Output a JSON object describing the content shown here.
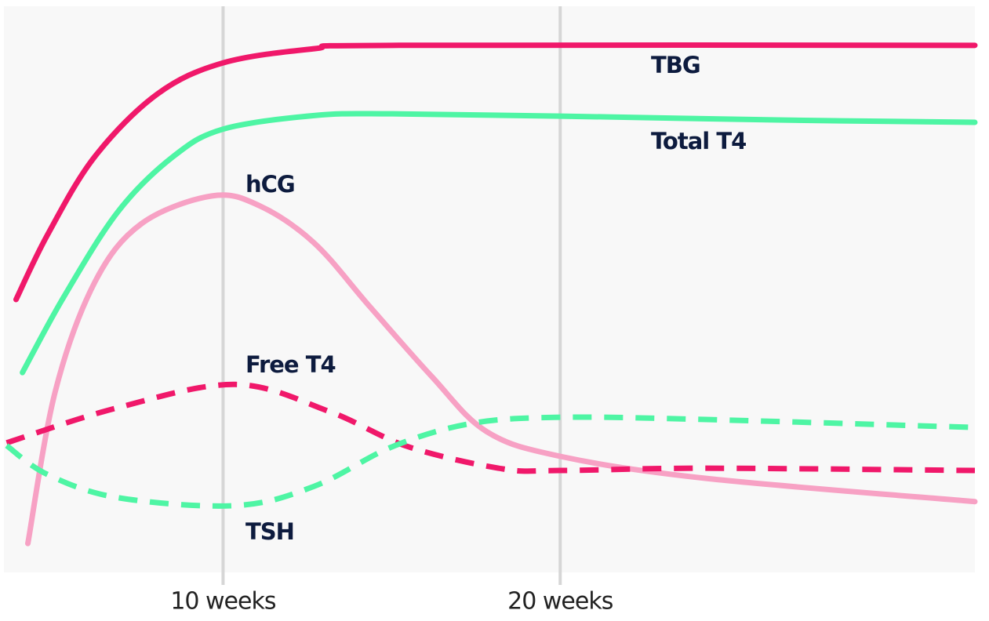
{
  "chart_data": {
    "type": "line",
    "xlim": [
      3.5,
      32.3
    ],
    "ylim": [
      0,
      100
    ],
    "xticks": [
      {
        "value": 10,
        "label": "10 weeks"
      },
      {
        "value": 20,
        "label": "20 weeks"
      }
    ],
    "grid": true,
    "series": [
      {
        "name": "TBG",
        "color": "#f0186a",
        "dashed": false,
        "x": [
          3.86,
          4.79,
          6.19,
          8.05,
          10,
          12.7,
          15.0,
          32.3
        ],
        "values": [
          48.2,
          59.6,
          73.4,
          84.5,
          90.0,
          92.5,
          93.1,
          93.1
        ]
      },
      {
        "name": "Total T4",
        "color": "#4ef5a4",
        "dashed": false,
        "x": [
          4.05,
          5.26,
          6.88,
          8.51,
          10,
          12.7,
          15.02,
          20,
          26.65,
          32.3
        ],
        "values": [
          35.3,
          48.5,
          63.7,
          73.4,
          78.3,
          80.7,
          81.0,
          80.6,
          79.9,
          79.5
        ]
      },
      {
        "name": "hCG",
        "color": "#f7a1c4",
        "dashed": false,
        "x": [
          4.21,
          5.02,
          6.19,
          7.58,
          9.67,
          11.07,
          12.7,
          14.33,
          16.19,
          17.81,
          20,
          24.33,
          32.3
        ],
        "values": [
          5.1,
          31.9,
          51.2,
          61.6,
          66.5,
          64.8,
          58.2,
          47.1,
          34.6,
          24.9,
          20.5,
          16.6,
          12.5
        ]
      },
      {
        "name": "Free T4",
        "color": "#f0186a",
        "dashed": true,
        "x": [
          3.58,
          6.88,
          10.37,
          13.16,
          15.49,
          18.28,
          20,
          24.33,
          32.3
        ],
        "values": [
          22.9,
          29.1,
          33.2,
          28.4,
          22.2,
          18.3,
          18.0,
          18.4,
          18.0
        ]
      },
      {
        "name": "TSH",
        "color": "#4ef5a4",
        "dashed": true,
        "x": [
          3.58,
          4.79,
          6.88,
          10.37,
          12.7,
          15.02,
          17.35,
          20,
          24.33,
          32.3
        ],
        "values": [
          22.4,
          17.3,
          13.2,
          11.8,
          15.2,
          22.2,
          26.3,
          27.4,
          27.0,
          25.6
        ]
      }
    ]
  }
}
